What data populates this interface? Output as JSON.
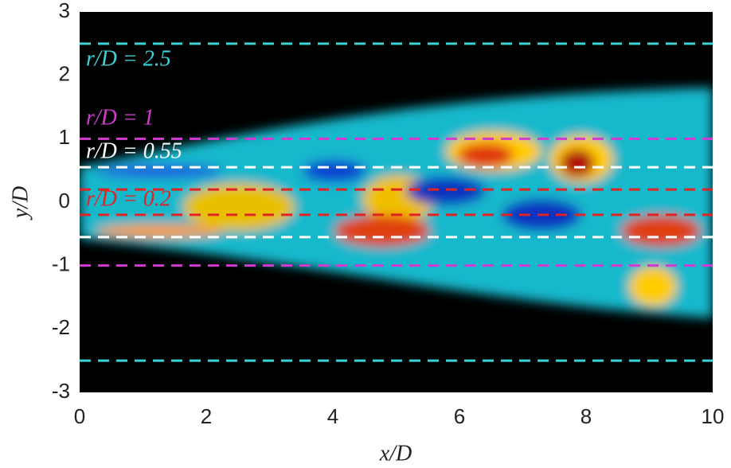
{
  "chart_data": {
    "type": "contour",
    "x_label": "x/D",
    "y_label": "y/D",
    "xlim": [
      0,
      10
    ],
    "xticks": [
      0,
      2,
      4,
      6,
      8,
      10
    ],
    "ylim": [
      -3,
      3
    ],
    "yticks": [
      -3,
      -2,
      -1,
      0,
      1,
      2,
      3
    ],
    "background": "#000000",
    "lines": [
      {
        "label": "r/D = 2.5",
        "color": "#3ad3d6",
        "values": [
          2.5,
          -2.5
        ]
      },
      {
        "label": "r/D = 1",
        "color": "#d23ad2",
        "values": [
          1,
          -1
        ]
      },
      {
        "label": "r/D = 0.55",
        "color": "#ffffff",
        "values": [
          0.55,
          -0.55
        ]
      },
      {
        "label": "r/D = 0.2",
        "color": "#e02424",
        "values": [
          0.2,
          -0.2
        ]
      }
    ]
  }
}
